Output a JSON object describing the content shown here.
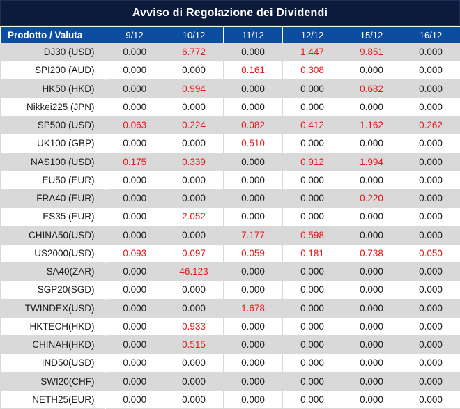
{
  "title": "Avviso di Regolazione dei Dividendi",
  "colors": {
    "title_bar_bg": "#0c1b3c",
    "header_bg": "#0c4da2",
    "row_bg": "#ffffff",
    "row_alt_bg": "#d9d9d9",
    "value_black": "#1a1a1a",
    "value_red": "#ee1417",
    "header_text": "#ffffff"
  },
  "table": {
    "product_header": "Prodotto / Valuta",
    "date_headers": [
      "9/12",
      "10/12",
      "11/12",
      "12/12",
      "15/12",
      "16/12"
    ],
    "rows": [
      {
        "product": "DJ30 (USD)",
        "values": [
          "0.000",
          "6.772",
          "0.000",
          "1.447",
          "9.851",
          "0.000"
        ],
        "red": [
          false,
          true,
          false,
          true,
          true,
          false
        ]
      },
      {
        "product": "SPI200 (AUD)",
        "values": [
          "0.000",
          "0.000",
          "0.161",
          "0.308",
          "0.000",
          "0.000"
        ],
        "red": [
          false,
          false,
          true,
          true,
          false,
          false
        ]
      },
      {
        "product": "HK50 (HKD)",
        "values": [
          "0.000",
          "0.994",
          "0.000",
          "0.000",
          "0.682",
          "0.000"
        ],
        "red": [
          false,
          true,
          false,
          false,
          true,
          false
        ]
      },
      {
        "product": "Nikkei225 (JPN)",
        "values": [
          "0.000",
          "0.000",
          "0.000",
          "0.000",
          "0.000",
          "0.000"
        ],
        "red": [
          false,
          false,
          false,
          false,
          false,
          false
        ]
      },
      {
        "product": "SP500 (USD)",
        "values": [
          "0.063",
          "0.224",
          "0.082",
          "0.412",
          "1.162",
          "0.262"
        ],
        "red": [
          true,
          true,
          true,
          true,
          true,
          true
        ]
      },
      {
        "product": "UK100 (GBP)",
        "values": [
          "0.000",
          "0.000",
          "0.510",
          "0.000",
          "0.000",
          "0.000"
        ],
        "red": [
          false,
          false,
          true,
          false,
          false,
          false
        ]
      },
      {
        "product": "NAS100 (USD)",
        "values": [
          "0.175",
          "0.339",
          "0.000",
          "0.912",
          "1.994",
          "0.000"
        ],
        "red": [
          true,
          true,
          false,
          true,
          true,
          false
        ]
      },
      {
        "product": "EU50 (EUR)",
        "values": [
          "0.000",
          "0.000",
          "0.000",
          "0.000",
          "0.000",
          "0.000"
        ],
        "red": [
          false,
          false,
          false,
          false,
          false,
          false
        ]
      },
      {
        "product": "FRA40 (EUR)",
        "values": [
          "0.000",
          "0.000",
          "0.000",
          "0.000",
          "0.220",
          "0.000"
        ],
        "red": [
          false,
          false,
          false,
          false,
          true,
          false
        ]
      },
      {
        "product": "ES35 (EUR)",
        "values": [
          "0.000",
          "2.052",
          "0.000",
          "0.000",
          "0.000",
          "0.000"
        ],
        "red": [
          false,
          true,
          false,
          false,
          false,
          false
        ]
      },
      {
        "product": "CHINA50(USD)",
        "values": [
          "0.000",
          "0.000",
          "7.177",
          "0.598",
          "0.000",
          "0.000"
        ],
        "red": [
          false,
          false,
          true,
          true,
          false,
          false
        ]
      },
      {
        "product": "US2000(USD)",
        "values": [
          "0.093",
          "0.097",
          "0.059",
          "0.181",
          "0.738",
          "0.050"
        ],
        "red": [
          true,
          true,
          true,
          true,
          true,
          true
        ]
      },
      {
        "product": "SA40(ZAR)",
        "values": [
          "0.000",
          "46.123",
          "0.000",
          "0.000",
          "0.000",
          "0.000"
        ],
        "red": [
          false,
          true,
          false,
          false,
          false,
          false
        ]
      },
      {
        "product": "SGP20(SGD)",
        "values": [
          "0.000",
          "0.000",
          "0.000",
          "0.000",
          "0.000",
          "0.000"
        ],
        "red": [
          false,
          false,
          false,
          false,
          false,
          false
        ]
      },
      {
        "product": "TWINDEX(USD)",
        "values": [
          "0.000",
          "0.000",
          "1.678",
          "0.000",
          "0.000",
          "0.000"
        ],
        "red": [
          false,
          false,
          true,
          false,
          false,
          false
        ]
      },
      {
        "product": "HKTECH(HKD)",
        "values": [
          "0.000",
          "0.933",
          "0.000",
          "0.000",
          "0.000",
          "0.000"
        ],
        "red": [
          false,
          true,
          false,
          false,
          false,
          false
        ]
      },
      {
        "product": "CHINAH(HKD)",
        "values": [
          "0.000",
          "0.515",
          "0.000",
          "0.000",
          "0.000",
          "0.000"
        ],
        "red": [
          false,
          true,
          false,
          false,
          false,
          false
        ]
      },
      {
        "product": "IND50(USD)",
        "values": [
          "0.000",
          "0.000",
          "0.000",
          "0.000",
          "0.000",
          "0.000"
        ],
        "red": [
          false,
          false,
          false,
          false,
          false,
          false
        ]
      },
      {
        "product": "SWI20(CHF)",
        "values": [
          "0.000",
          "0.000",
          "0.000",
          "0.000",
          "0.000",
          "0.000"
        ],
        "red": [
          false,
          false,
          false,
          false,
          false,
          false
        ]
      },
      {
        "product": "NETH25(EUR)",
        "values": [
          "0.000",
          "0.000",
          "0.000",
          "0.000",
          "0.000",
          "0.000"
        ],
        "red": [
          false,
          false,
          false,
          false,
          false,
          false
        ]
      }
    ]
  }
}
